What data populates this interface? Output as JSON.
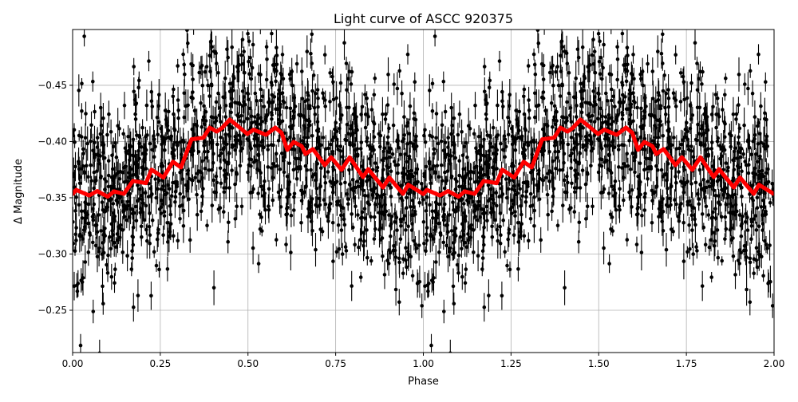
{
  "chart_data": {
    "type": "scatter",
    "title": "Light curve of ASCC 920375",
    "xlabel": "Phase",
    "ylabel": "Δ Magnitude",
    "xlim": [
      0,
      2
    ],
    "ylim": [
      -0.2124,
      -0.4996
    ],
    "y_inverted": true,
    "grid": true,
    "xticks": [
      0,
      0.25,
      0.5,
      0.75,
      1.0,
      1.25,
      1.5,
      1.75,
      2.0
    ],
    "xtick_labels": [
      "0.00",
      "0.25",
      "0.50",
      "0.75",
      "1.00",
      "1.25",
      "1.50",
      "1.75",
      "2.00"
    ],
    "yticks": [
      -0.45,
      -0.4,
      -0.35,
      -0.3,
      -0.25
    ],
    "ytick_labels": [
      "−0.45",
      "−0.40",
      "−0.35",
      "−0.30",
      "−0.25"
    ],
    "series": [
      {
        "kind": "errorbar-scatter",
        "color": "#000000",
        "description_values": "dense photometric points with error bars scattered around the model curve, repeated for phases 0–1 and 1–2"
      },
      {
        "kind": "line",
        "color": "#ff0000",
        "period_repeat": true,
        "phase": [
          0.0,
          0.01,
          0.047,
          0.07,
          0.1,
          0.118,
          0.146,
          0.172,
          0.209,
          0.225,
          0.259,
          0.286,
          0.309,
          0.339,
          0.373,
          0.391,
          0.411,
          0.426,
          0.448,
          0.471,
          0.498,
          0.516,
          0.551,
          0.578,
          0.596,
          0.612,
          0.63,
          0.653,
          0.664,
          0.685,
          0.719,
          0.737,
          0.767,
          0.79,
          0.828,
          0.843,
          0.885,
          0.903,
          0.942,
          0.957,
          1.0
        ],
        "magnitude": [
          -0.3533,
          -0.357,
          -0.352,
          -0.356,
          -0.351,
          -0.3557,
          -0.3535,
          -0.365,
          -0.363,
          -0.375,
          -0.368,
          -0.382,
          -0.377,
          -0.402,
          -0.4034,
          -0.4124,
          -0.4089,
          -0.412,
          -0.4195,
          -0.4138,
          -0.4067,
          -0.4105,
          -0.406,
          -0.4124,
          -0.4077,
          -0.3926,
          -0.3996,
          -0.396,
          -0.389,
          -0.3933,
          -0.379,
          -0.386,
          -0.3748,
          -0.386,
          -0.3684,
          -0.3755,
          -0.3592,
          -0.368,
          -0.3535,
          -0.3616,
          -0.3533
        ]
      }
    ]
  }
}
